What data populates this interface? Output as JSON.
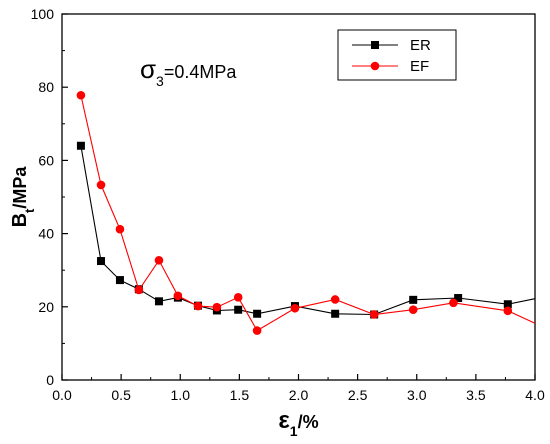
{
  "chart_data": {
    "type": "line",
    "xlim": [
      0.0,
      4.0
    ],
    "ylim": [
      0,
      100
    ],
    "x_ticks": [
      0.0,
      0.5,
      1.0,
      1.5,
      2.0,
      2.5,
      3.0,
      3.5,
      4.0
    ],
    "x_tick_labels": [
      "0.0",
      "0.5",
      "1.0",
      "1.5",
      "2.0",
      "2.5",
      "3.0",
      "3.5",
      "4.0"
    ],
    "y_ticks": [
      0,
      20,
      40,
      60,
      80,
      100
    ],
    "y_tick_labels": [
      "0",
      "20",
      "40",
      "60",
      "80",
      "100"
    ],
    "xlabel": {
      "main": "ε",
      "sub": "1",
      "rest": "/%"
    },
    "ylabel": {
      "main": "B",
      "sub": "t",
      "rest": "/MPa"
    },
    "annotation": {
      "main": "σ",
      "sub": "3",
      "rest": "=0.4MPa"
    },
    "legend_position": "top-right",
    "grid": false,
    "series": [
      {
        "name": "ER",
        "color": "#000000",
        "marker": "square",
        "x": [
          0.16,
          0.33,
          0.49,
          0.65,
          0.82,
          0.98,
          1.15,
          1.31,
          1.49,
          1.65,
          1.97,
          2.31,
          2.64,
          2.97,
          3.35,
          3.77,
          4.0
        ],
        "y": [
          64,
          32.5,
          27.3,
          24.8,
          21.5,
          22.5,
          20.3,
          19.0,
          19.2,
          18.1,
          20.2,
          18.1,
          17.9,
          21.9,
          22.4,
          20.7,
          22.2
        ],
        "marker_count": 16
      },
      {
        "name": "EF",
        "color": "#ff0000",
        "marker": "circle",
        "x": [
          0.16,
          0.33,
          0.49,
          0.65,
          0.82,
          0.98,
          1.15,
          1.31,
          1.49,
          1.65,
          1.97,
          2.31,
          2.64,
          2.97,
          3.31,
          3.77,
          4.0
        ],
        "y": [
          77.8,
          53.3,
          41.2,
          24.6,
          32.7,
          23.0,
          20.2,
          19.9,
          22.6,
          13.5,
          19.6,
          22.0,
          17.9,
          19.2,
          21.1,
          18.9,
          15.5
        ],
        "marker_count": 16
      }
    ]
  }
}
